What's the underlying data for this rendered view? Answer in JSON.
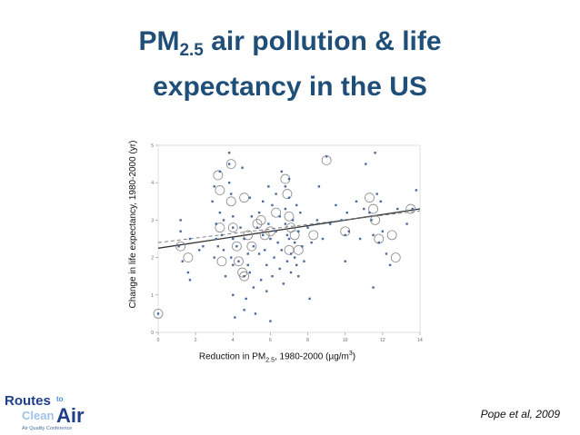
{
  "slide": {
    "title_line1_pre": "PM",
    "title_line1_sub": "2.5",
    "title_line1_post": " air pollution & life",
    "title_line2": "expectancy in the US",
    "citation": "Pope et al, 2009",
    "logo": {
      "line1": "Routes",
      "to": "to",
      "line2a": "Clean",
      "line2b": "Air",
      "tagline": "Air Quality Conference",
      "colors": {
        "dark": "#1f3f8a",
        "light": "#9ec3e8",
        "accent": "#4a90d9"
      }
    }
  },
  "chart_data": {
    "type": "scatter",
    "title": "",
    "ylabel": "Change in life expectancy, 1980-2000 (yr)",
    "xlabel_parts": {
      "pre": "Reduction in PM",
      "sub": "2.5",
      "mid": ", 1980-2000 (µg/m",
      "sup": "3",
      "post": ")"
    },
    "xlim": [
      0,
      14
    ],
    "ylim": [
      0,
      5
    ],
    "x_ticks": [
      "0",
      "2",
      "4",
      "6",
      "8",
      "10",
      "12",
      "14"
    ],
    "y_ticks": [
      "0",
      "1",
      "2",
      "3",
      "4",
      "5"
    ],
    "point_color": "#4a6a9a",
    "circle_color": "#888888",
    "points": [
      [
        0.0,
        0.5
      ],
      [
        1.1,
        2.3
      ],
      [
        1.2,
        3.0
      ],
      [
        1.2,
        2.7
      ],
      [
        1.3,
        1.9
      ],
      [
        1.6,
        1.6
      ],
      [
        1.7,
        1.4
      ],
      [
        1.7,
        2.5
      ],
      [
        2.2,
        2.2
      ],
      [
        2.4,
        2.3
      ],
      [
        2.9,
        3.5
      ],
      [
        3.0,
        3.9
      ],
      [
        3.0,
        2.0
      ],
      [
        3.1,
        2.9
      ],
      [
        3.1,
        2.5
      ],
      [
        3.2,
        2.3
      ],
      [
        3.3,
        3.2
      ],
      [
        3.3,
        4.3
      ],
      [
        3.4,
        2.6
      ],
      [
        3.5,
        3.0
      ],
      [
        3.5,
        2.2
      ],
      [
        3.6,
        1.5
      ],
      [
        3.8,
        4.8
      ],
      [
        3.8,
        4.5
      ],
      [
        3.8,
        4.0
      ],
      [
        3.9,
        3.7
      ],
      [
        3.9,
        2.0
      ],
      [
        4.0,
        3.1
      ],
      [
        4.0,
        2.8
      ],
      [
        4.0,
        2.5
      ],
      [
        4.0,
        1.8
      ],
      [
        4.0,
        1.0
      ],
      [
        4.1,
        0.4
      ],
      [
        4.2,
        2.3
      ],
      [
        4.3,
        1.9
      ],
      [
        4.4,
        2.8
      ],
      [
        4.5,
        4.4
      ],
      [
        4.6,
        2.5
      ],
      [
        4.6,
        1.5
      ],
      [
        4.6,
        0.6
      ],
      [
        4.7,
        0.9
      ],
      [
        4.8,
        2.1
      ],
      [
        4.8,
        1.8
      ],
      [
        4.9,
        1.6
      ],
      [
        4.9,
        3.6
      ],
      [
        5.0,
        3.1
      ],
      [
        5.1,
        2.3
      ],
      [
        5.1,
        1.2
      ],
      [
        5.2,
        0.5
      ],
      [
        5.3,
        2.8
      ],
      [
        5.4,
        3.2
      ],
      [
        5.4,
        2.1
      ],
      [
        5.5,
        1.4
      ],
      [
        5.6,
        3.5
      ],
      [
        5.6,
        2.6
      ],
      [
        5.7,
        2.2
      ],
      [
        5.8,
        1.8
      ],
      [
        5.8,
        1.1
      ],
      [
        5.9,
        3.9
      ],
      [
        5.9,
        2.9
      ],
      [
        6.0,
        2.5
      ],
      [
        6.0,
        0.3
      ],
      [
        6.1,
        3.4
      ],
      [
        6.1,
        1.5
      ],
      [
        6.2,
        2.0
      ],
      [
        6.3,
        3.7
      ],
      [
        6.3,
        2.7
      ],
      [
        6.4,
        2.4
      ],
      [
        6.5,
        3.1
      ],
      [
        6.5,
        1.7
      ],
      [
        6.6,
        4.3
      ],
      [
        6.6,
        2.2
      ],
      [
        6.7,
        1.3
      ],
      [
        6.8,
        3.9
      ],
      [
        6.8,
        3.3
      ],
      [
        6.8,
        2.9
      ],
      [
        6.9,
        2.6
      ],
      [
        6.9,
        1.9
      ],
      [
        7.0,
        4.1
      ],
      [
        7.0,
        3.6
      ],
      [
        7.0,
        2.5
      ],
      [
        7.1,
        2.1
      ],
      [
        7.1,
        1.6
      ],
      [
        7.2,
        3.0
      ],
      [
        7.3,
        2.4
      ],
      [
        7.3,
        2.0
      ],
      [
        7.4,
        3.4
      ],
      [
        7.4,
        1.8
      ],
      [
        7.5,
        2.7
      ],
      [
        7.5,
        1.5
      ],
      [
        7.6,
        3.2
      ],
      [
        7.7,
        2.3
      ],
      [
        7.8,
        1.9
      ],
      [
        8.0,
        2.8
      ],
      [
        8.1,
        0.9
      ],
      [
        8.2,
        2.4
      ],
      [
        8.5,
        3.0
      ],
      [
        8.6,
        3.9
      ],
      [
        8.8,
        2.5
      ],
      [
        9.0,
        4.7
      ],
      [
        9.2,
        2.9
      ],
      [
        9.5,
        3.4
      ],
      [
        9.8,
        3.0
      ],
      [
        10.0,
        2.6
      ],
      [
        10.0,
        1.9
      ],
      [
        10.1,
        3.2
      ],
      [
        10.2,
        2.7
      ],
      [
        10.6,
        3.5
      ],
      [
        10.8,
        2.5
      ],
      [
        11.0,
        3.3
      ],
      [
        11.1,
        4.5
      ],
      [
        11.3,
        3.2
      ],
      [
        11.4,
        3.0
      ],
      [
        11.5,
        1.2
      ],
      [
        11.5,
        2.6
      ],
      [
        11.6,
        4.8
      ],
      [
        11.7,
        3.7
      ],
      [
        11.8,
        2.4
      ],
      [
        11.9,
        3.5
      ],
      [
        12.0,
        2.7
      ],
      [
        12.2,
        2.1
      ],
      [
        12.4,
        1.8
      ],
      [
        12.8,
        3.3
      ],
      [
        13.3,
        2.9
      ],
      [
        13.6,
        3.3
      ],
      [
        13.8,
        3.8
      ]
    ],
    "circled_points": [
      [
        0.0,
        0.5
      ],
      [
        1.2,
        2.3
      ],
      [
        1.6,
        2.0
      ],
      [
        3.2,
        4.2
      ],
      [
        3.3,
        3.8
      ],
      [
        3.3,
        2.8
      ],
      [
        3.4,
        1.9
      ],
      [
        3.9,
        4.5
      ],
      [
        3.9,
        3.5
      ],
      [
        4.0,
        2.8
      ],
      [
        4.2,
        2.3
      ],
      [
        4.3,
        1.9
      ],
      [
        4.5,
        1.6
      ],
      [
        4.6,
        1.5
      ],
      [
        4.6,
        3.6
      ],
      [
        4.8,
        2.6
      ],
      [
        5.0,
        2.3
      ],
      [
        5.3,
        2.9
      ],
      [
        5.5,
        3.0
      ],
      [
        5.7,
        2.6
      ],
      [
        6.0,
        2.7
      ],
      [
        6.3,
        3.2
      ],
      [
        6.8,
        4.1
      ],
      [
        6.9,
        3.7
      ],
      [
        7.0,
        3.1
      ],
      [
        7.0,
        2.2
      ],
      [
        7.1,
        2.8
      ],
      [
        7.3,
        2.6
      ],
      [
        7.5,
        2.2
      ],
      [
        8.3,
        2.6
      ],
      [
        9.0,
        4.6
      ],
      [
        10.0,
        2.7
      ],
      [
        11.3,
        3.6
      ],
      [
        11.5,
        3.3
      ],
      [
        11.6,
        3.0
      ],
      [
        11.8,
        2.5
      ],
      [
        12.5,
        2.6
      ],
      [
        12.7,
        2.0
      ],
      [
        13.5,
        3.3
      ]
    ],
    "fit_lines": [
      {
        "style": "solid",
        "x": [
          0,
          14
        ],
        "y": [
          2.25,
          3.3
        ]
      },
      {
        "style": "dashed",
        "x": [
          0,
          14
        ],
        "y": [
          2.4,
          3.25
        ]
      }
    ]
  }
}
